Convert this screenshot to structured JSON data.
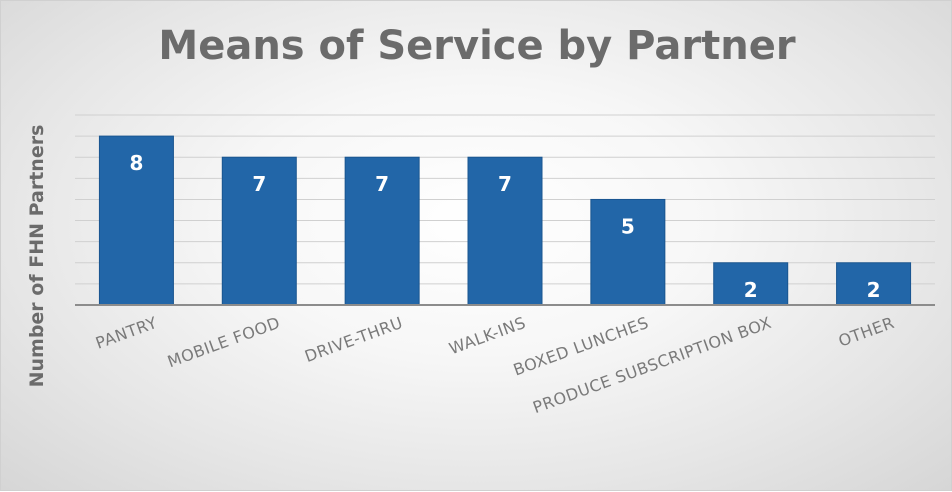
{
  "chart_data": {
    "type": "bar",
    "title": "Means of Service by Partner",
    "ylabel": "Number of FHN Partners",
    "xlabel": "",
    "categories": [
      "PANTRY",
      "MOBILE FOOD",
      "DRIVE-THRU",
      "WALK-INS",
      "BOXED LUNCHES",
      "PRODUCE SUBSCRIPTION BOX",
      "OTHER"
    ],
    "values": [
      8,
      7,
      7,
      7,
      5,
      2,
      2
    ],
    "ylim": [
      0,
      9
    ],
    "grid": true,
    "legend": "none",
    "data_labels": true,
    "colors": {
      "bar": "#2266a8",
      "bar_edge": "#1a5690",
      "gridline": "#d0d0d0",
      "axis": "#8c8c8c",
      "title": "#6b6b6b",
      "tick_label": "#7a7a7a"
    }
  }
}
